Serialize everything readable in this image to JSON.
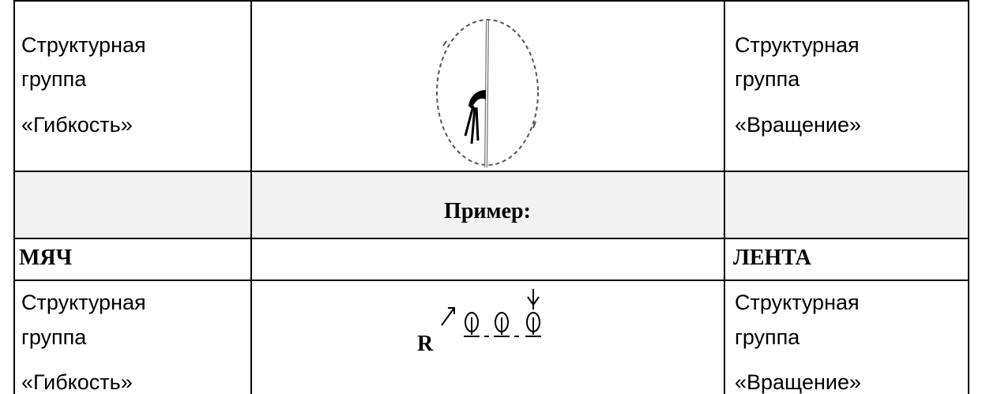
{
  "table": {
    "rows": [
      {
        "left": [
          "Структурная",
          "группа",
          "«Гибкость»"
        ],
        "right": [
          "Структурная",
          "группа",
          "«Вращение»"
        ]
      },
      {
        "center": "Пример:"
      },
      {
        "left": "МЯЧ",
        "right": "ЛЕНТА"
      },
      {
        "left": [
          "Структурная",
          "группа",
          "«Гибкость»"
        ],
        "center": "R",
        "right": [
          "Структурная",
          "группа",
          "«Вращение»"
        ]
      }
    ]
  }
}
